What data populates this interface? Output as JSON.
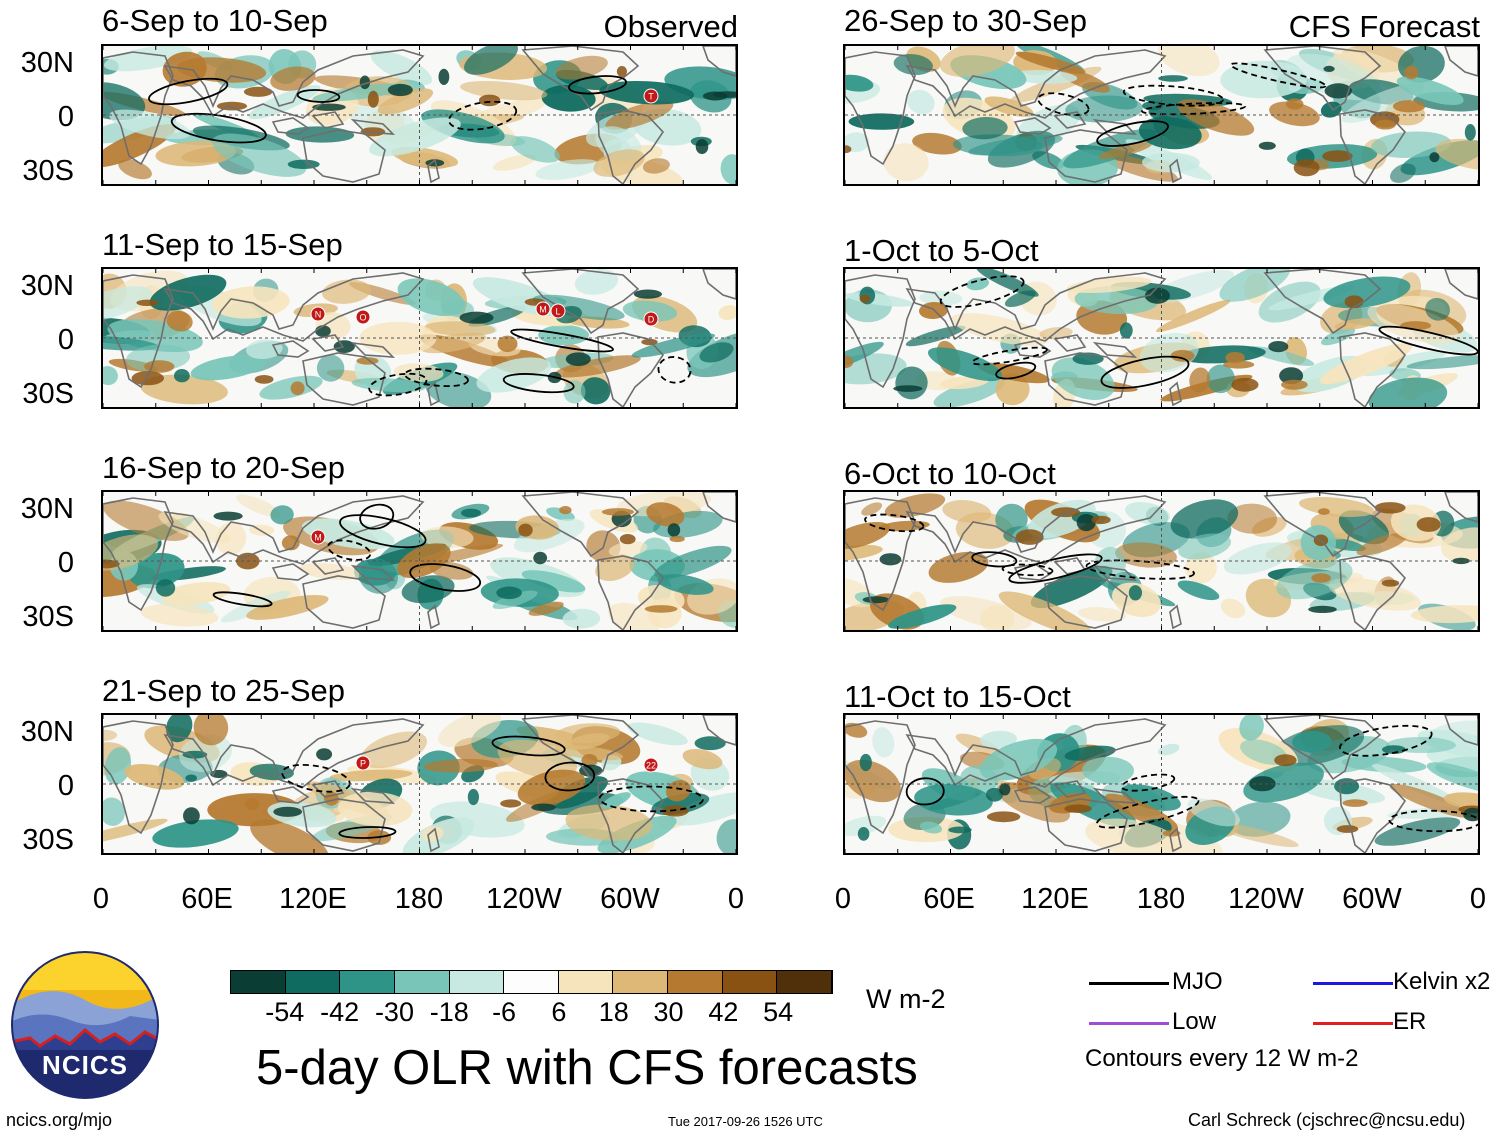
{
  "left_column": {
    "header": "Observed",
    "panels": [
      {
        "title": "6-Sep to 10-Sep",
        "storms": [
          "T"
        ]
      },
      {
        "title": "11-Sep to 15-Sep",
        "storms": [
          "D",
          "O",
          "N",
          "M",
          "L"
        ]
      },
      {
        "title": "16-Sep to 20-Sep",
        "storms": [
          "M"
        ]
      },
      {
        "title": "21-Sep to 25-Sep",
        "storms": [
          "22",
          "P"
        ]
      }
    ]
  },
  "right_column": {
    "header": "CFS Forecast",
    "panels": [
      {
        "title": "26-Sep to 30-Sep"
      },
      {
        "title": "1-Oct to 5-Oct"
      },
      {
        "title": "6-Oct to 10-Oct"
      },
      {
        "title": "11-Oct to 15-Oct"
      }
    ]
  },
  "lat_labels": [
    "30N",
    "0",
    "30S"
  ],
  "lon_labels": [
    "0",
    "60E",
    "120E",
    "180",
    "120W",
    "60W",
    "0"
  ],
  "colorbar": {
    "ticks": [
      "-54",
      "-42",
      "-30",
      "-18",
      "-6",
      "6",
      "18",
      "30",
      "42",
      "54"
    ],
    "colors": [
      "#0a3d34",
      "#0f6b5f",
      "#2e9488",
      "#79c6b9",
      "#c7e9e1",
      "#fdfdfd",
      "#f6e4bd",
      "#ddb877",
      "#b57a30",
      "#8a5212",
      "#4f300a"
    ],
    "units": "W m-2"
  },
  "legend": {
    "items": [
      {
        "label": "MJO",
        "color": "#000000"
      },
      {
        "label": "Kelvin x2",
        "color": "#1a1adf"
      },
      {
        "label": "Low",
        "color": "#9b4fd6"
      },
      {
        "label": "ER",
        "color": "#e01f1f"
      }
    ],
    "note": "Contours every 12 W m-2"
  },
  "logo_text": "NCICS",
  "main_title": "5-day OLR with CFS forecasts",
  "footer": {
    "url": "ncics.org/mjo",
    "timestamp": "Tue 2017-09-26 1526 UTC",
    "credit": "Carl Schreck (cjschrec@ncsu.edu)"
  }
}
